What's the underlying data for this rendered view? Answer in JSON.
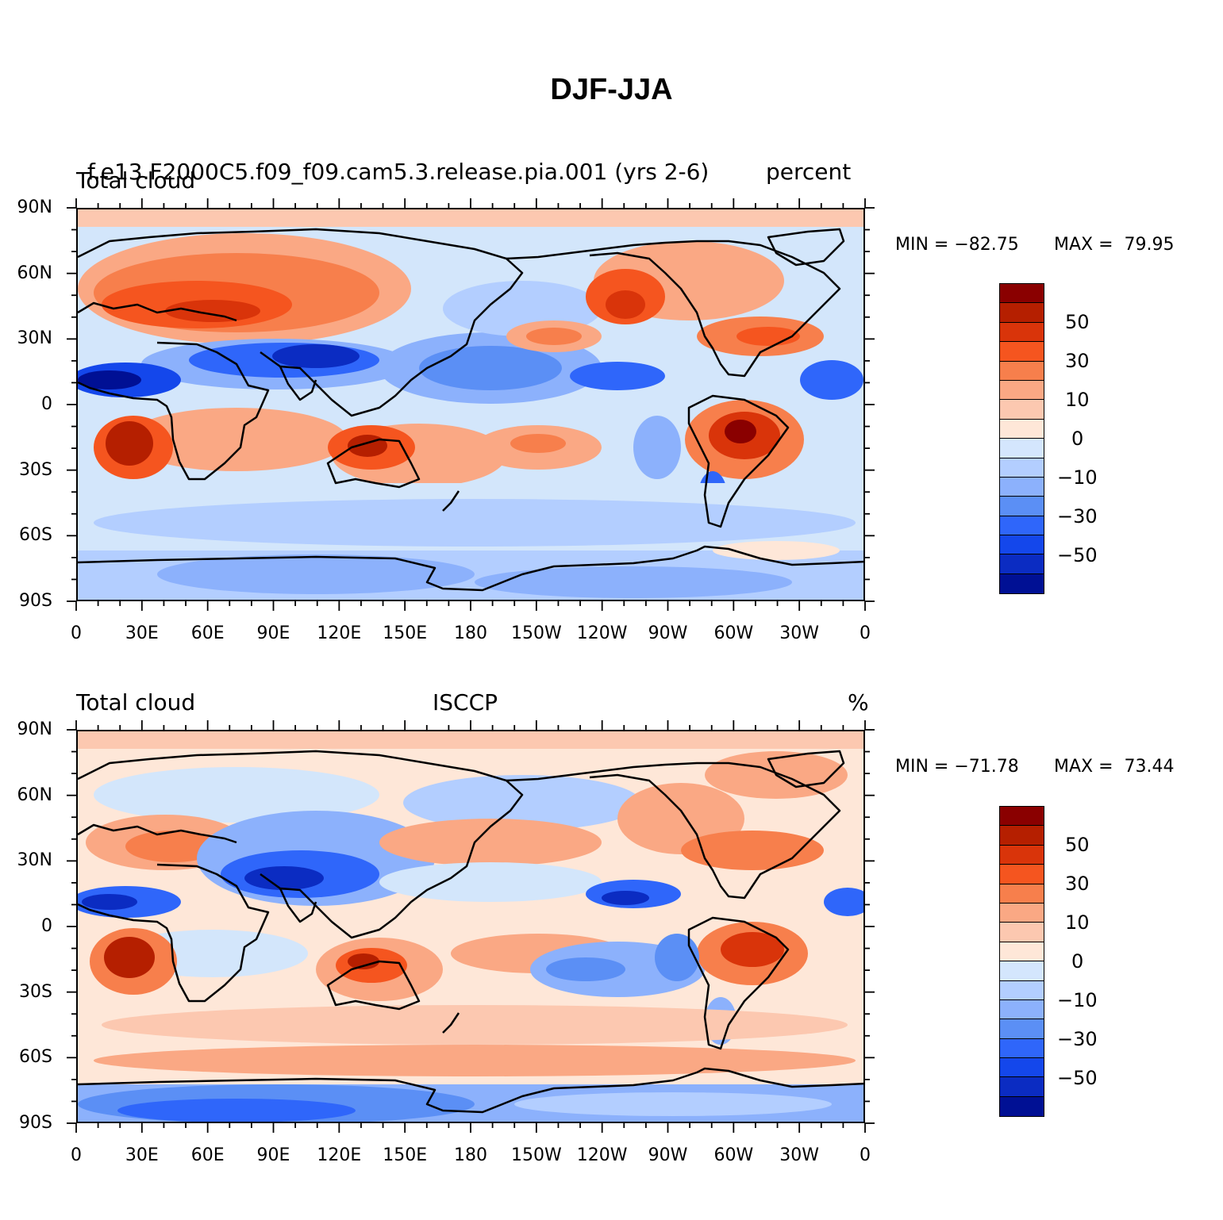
{
  "title": "DJF-JJA",
  "axes": {
    "lat_labels": [
      "90N",
      "60N",
      "30N",
      "0",
      "30S",
      "60S",
      "90S"
    ],
    "lon_labels": [
      "0",
      "30E",
      "60E",
      "90E",
      "120E",
      "150E",
      "180",
      "150W",
      "120W",
      "90W",
      "60W",
      "30W",
      "0"
    ]
  },
  "colorbar": {
    "colors": [
      "#8a0000",
      "#b51f00",
      "#d9340a",
      "#f5551f",
      "#f77f4c",
      "#faa884",
      "#fcc8b0",
      "#fee7d8",
      "#d4e6fd",
      "#b3ceff",
      "#8cb1fc",
      "#5b8ff5",
      "#2f66fa",
      "#1447eb",
      "#0b2cc2",
      "#001094"
    ],
    "labels": [
      "50",
      "30",
      "10",
      "0",
      "−10",
      "−30",
      "−50"
    ]
  },
  "panels": [
    {
      "left_label": "Total cloud",
      "center_label": "f.e13.F2000C5.f09_f09.cam5.3.release.pia.001 (yrs 2-6)",
      "right_label": "percent",
      "min_label": "MIN = −82.75",
      "max_label": "MAX =  79.95"
    },
    {
      "left_label": "Total cloud",
      "center_label": "ISCCP",
      "right_label": "%",
      "min_label": "MIN = −71.78",
      "max_label": "MAX =  73.44"
    }
  ],
  "chart_data": [
    {
      "type": "heatmap",
      "title": "DJF-JJA",
      "series_label": "Total cloud",
      "source": "f.e13.F2000C5.f09_f09.cam5.3.release.pia.001 (yrs 2-6)",
      "units": "percent",
      "min": -82.75,
      "max": 79.95,
      "x_ticks": [
        "0",
        "30E",
        "60E",
        "90E",
        "120E",
        "150E",
        "180",
        "150W",
        "120W",
        "90W",
        "60W",
        "30W",
        "0"
      ],
      "y_ticks": [
        "90N",
        "60N",
        "30N",
        "0",
        "30S",
        "60S",
        "90S"
      ],
      "xlim": [
        0,
        360
      ],
      "ylim": [
        -90,
        90
      ],
      "contour_levels": [
        -70,
        -60,
        -50,
        -40,
        -30,
        -20,
        -10,
        0,
        5,
        10,
        20,
        30,
        40,
        50,
        60,
        70
      ]
    },
    {
      "type": "heatmap",
      "title": "DJF-JJA",
      "series_label": "Total cloud",
      "source": "ISCCP",
      "units": "%",
      "min": -71.78,
      "max": 73.44,
      "x_ticks": [
        "0",
        "30E",
        "60E",
        "90E",
        "120E",
        "150E",
        "180",
        "150W",
        "120W",
        "90W",
        "60W",
        "30W",
        "0"
      ],
      "y_ticks": [
        "90N",
        "60N",
        "30N",
        "0",
        "30S",
        "60S",
        "90S"
      ],
      "xlim": [
        0,
        360
      ],
      "ylim": [
        -90,
        90
      ],
      "contour_levels": [
        -70,
        -60,
        -50,
        -40,
        -30,
        -20,
        -10,
        0,
        5,
        10,
        20,
        30,
        40,
        50,
        60,
        70
      ]
    }
  ]
}
